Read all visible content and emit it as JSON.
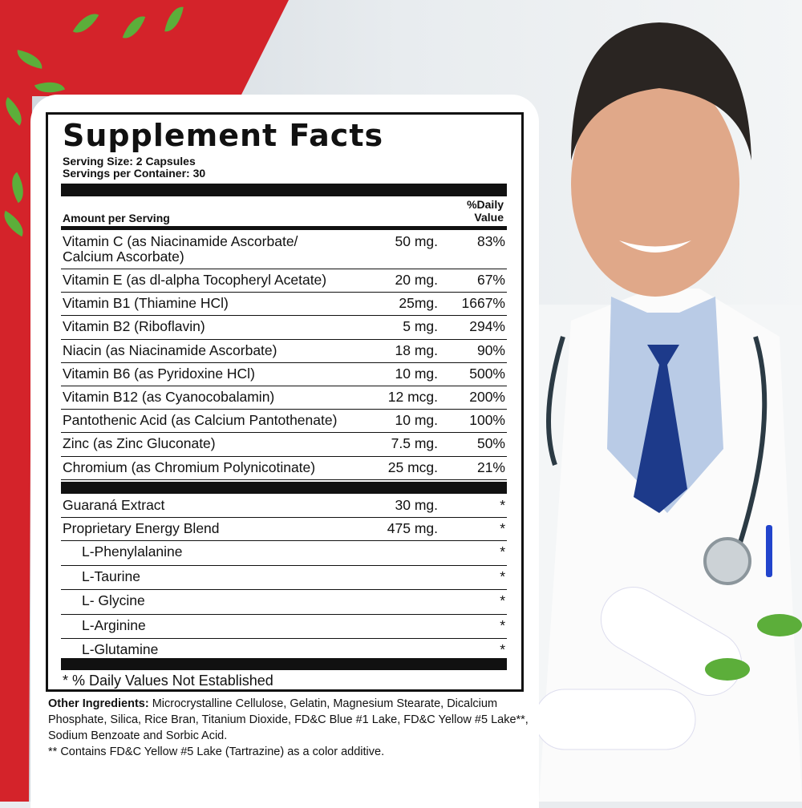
{
  "label": {
    "title": "Supplement Facts",
    "serving_size": "Serving Size:  2 Capsules",
    "servings_per_container": "Servings per Container: 30",
    "amount_header": "Amount per Serving",
    "dv_header_1": "%Daily",
    "dv_header_2": "Value",
    "vitamins": [
      {
        "name": "Vitamin C  (as Niacinamide Ascorbate/",
        "name2": "Calcium Ascorbate)",
        "amount": "50 mg.",
        "dv": "83%"
      },
      {
        "name": "Vitamin E (as dl-alpha Tocopheryl Acetate)",
        "amount": "20 mg.",
        "dv": "67%"
      },
      {
        "name": "Vitamin B1 (Thiamine HCl)",
        "amount": "25mg.",
        "dv": "1667%"
      },
      {
        "name": "Vitamin B2 (Riboflavin)",
        "amount": "5 mg.",
        "dv": "294%"
      },
      {
        "name": "Niacin (as Niacinamide Ascorbate)",
        "amount": "18 mg.",
        "dv": "90%"
      },
      {
        "name": "Vitamin B6 (as Pyridoxine HCl)",
        "amount": "10 mg.",
        "dv": "500%"
      },
      {
        "name": "Vitamin B12 (as Cyanocobalamin)",
        "amount": "12 mcg.",
        "dv": "200%"
      },
      {
        "name": "Pantothenic Acid (as Calcium Pantothenate)",
        "amount": "10 mg.",
        "dv": "100%"
      },
      {
        "name": "Zinc (as Zinc Gluconate)",
        "amount": "7.5 mg.",
        "dv": "50%"
      },
      {
        "name": "Chromium (as Chromium Polynicotinate)",
        "amount": "25 mcg.",
        "dv": "21%"
      }
    ],
    "blend": [
      {
        "name": "Guaraná Extract",
        "amount": "30 mg.",
        "dv": "*"
      },
      {
        "name": "Proprietary Energy Blend",
        "amount": "475 mg.",
        "dv": "*"
      },
      {
        "name": "L-Phenylalanine",
        "amount": "",
        "dv": "*",
        "indent": true
      },
      {
        "name": "L-Taurine",
        "amount": "",
        "dv": "*",
        "indent": true
      },
      {
        "name": "L- Glycine",
        "amount": "",
        "dv": "*",
        "indent": true
      },
      {
        "name": "L-Arginine",
        "amount": "",
        "dv": "*",
        "indent": true
      },
      {
        "name": "L-Glutamine",
        "amount": "",
        "dv": "*",
        "indent": true
      }
    ],
    "footnote": "*  % Daily Values Not Established"
  },
  "other": {
    "heading": "Other Ingredients:",
    "text": " Microcrystalline Cellulose, Gelatin, Magnesium Stearate, Dicalcium Phosphate, Silica, Rice Bran, Titanium Dioxide, FD&C Blue #1 Lake, FD&C Yellow #5 Lake**, Sodium Benzoate and Sorbic Acid.",
    "note": "** Contains FD&C Yellow #5 Lake (Tartrazine) as a color additive."
  },
  "colors": {
    "background_red": "#d4232a",
    "leaf_green": "#5cae3a",
    "tie_blue": "#1d3a8a"
  }
}
